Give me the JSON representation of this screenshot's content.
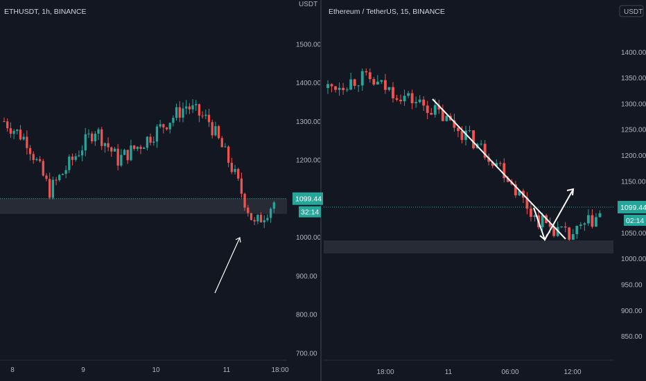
{
  "colors": {
    "background": "#131722",
    "up": "#26a69a",
    "down": "#ef5350",
    "axis_text": "#b2b5be",
    "grid_line": "#2a2e39",
    "zone": "#2a2e39",
    "price_badge": "#26a69a",
    "drawing": "#ffffff"
  },
  "chart_data": [
    {
      "type": "candlestick",
      "title": "ETHUSDT, 1h, BINANCE",
      "ylabel": "USDT",
      "ylim": [
        690,
        1560
      ],
      "y_ticks": [
        "1500.00",
        "1400.00",
        "1300.00",
        "1200.00",
        "1100.00",
        "1000.00",
        "900.00",
        "800.00",
        "700.00"
      ],
      "x_ticks": [
        "8",
        "9",
        "10",
        "11",
        "18:00"
      ],
      "last_price": "1099.44",
      "countdown": "32:14",
      "series": [
        {
          "date": "8",
          "open": 1300,
          "close": 1250
        },
        {
          "date": "8",
          "open": 1250,
          "close": 1120
        },
        {
          "date": "8",
          "open": 1120,
          "close": 1200
        },
        {
          "date": "9",
          "open": 1200,
          "close": 1280
        },
        {
          "date": "9",
          "open": 1280,
          "close": 1200
        },
        {
          "date": "9",
          "open": 1200,
          "close": 1240
        },
        {
          "date": "10",
          "open": 1240,
          "close": 1290
        },
        {
          "date": "10",
          "open": 1290,
          "close": 1340
        },
        {
          "date": "10",
          "open": 1340,
          "close": 1300
        },
        {
          "date": "11",
          "open": 1300,
          "close": 1180
        },
        {
          "date": "11",
          "open": 1180,
          "close": 1030
        },
        {
          "date": "11",
          "open": 1030,
          "close": 1100
        }
      ],
      "support_zone": [
        1060,
        1100
      ],
      "annotation": "arrow pointing up toward support zone"
    },
    {
      "type": "candlestick",
      "title": "Ethereum / TetherUS, 15, BINANCE",
      "ylabel": "USDT",
      "ylim": [
        810,
        1460
      ],
      "y_ticks": [
        "1400.00",
        "1350.00",
        "1300.00",
        "1250.00",
        "1200.00",
        "1150.00",
        "1050.00",
        "1000.00",
        "950.00",
        "900.00",
        "850.00"
      ],
      "x_ticks": [
        "18:00",
        "11",
        "06:00",
        "12:00"
      ],
      "last_price": "1099.44",
      "countdown": "02:14",
      "series": [
        {
          "date": "10",
          "open": 1330,
          "close": 1350
        },
        {
          "date": "10",
          "open": 1350,
          "close": 1320
        },
        {
          "date": "10",
          "open": 1320,
          "close": 1290
        },
        {
          "date": "11",
          "open": 1290,
          "close": 1240
        },
        {
          "date": "11",
          "open": 1240,
          "close": 1180
        },
        {
          "date": "11",
          "open": 1180,
          "close": 1080
        },
        {
          "date": "11",
          "open": 1080,
          "close": 1040
        },
        {
          "date": "11",
          "open": 1040,
          "close": 1090
        }
      ],
      "support_zone": [
        1010,
        1035
      ],
      "annotation": "descending trendline with projected move down then up"
    }
  ]
}
